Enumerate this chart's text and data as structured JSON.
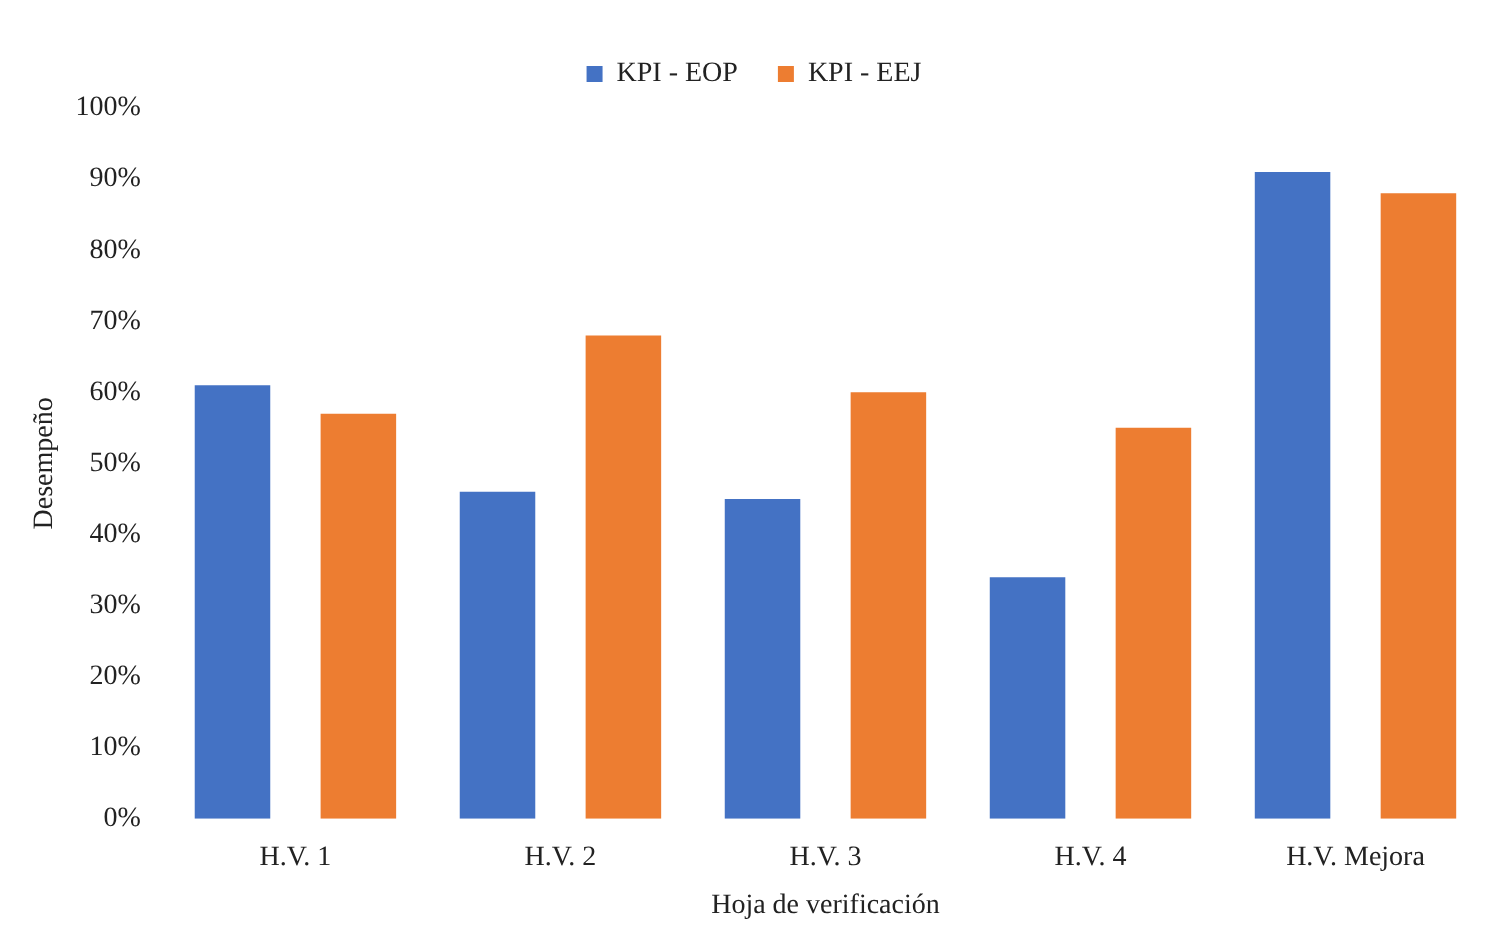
{
  "chart_data": {
    "type": "bar",
    "xlabel": "Hoja de verificación",
    "ylabel": "Desempeño",
    "categories": [
      "H.V. 1",
      "H.V. 2",
      "H.V. 3",
      "H.V. 4",
      "H.V. Mejora"
    ],
    "series": [
      {
        "name": "KPI - EOP",
        "color": "#4472c4",
        "values": [
          61,
          46,
          45,
          34,
          91
        ]
      },
      {
        "name": "KPI - EEJ",
        "color": "#ed7d31",
        "values": [
          57,
          68,
          60,
          55,
          88
        ]
      }
    ],
    "ylim": [
      0,
      100
    ],
    "yticks": [
      {
        "value": 0,
        "label": "0%"
      },
      {
        "value": 10,
        "label": "10%"
      },
      {
        "value": 20,
        "label": "20%"
      },
      {
        "value": 30,
        "label": "30%"
      },
      {
        "value": 40,
        "label": "40%"
      },
      {
        "value": 50,
        "label": "50%"
      },
      {
        "value": 60,
        "label": "60%"
      },
      {
        "value": 70,
        "label": "70%"
      },
      {
        "value": 80,
        "label": "80%"
      },
      {
        "value": 90,
        "label": "90%"
      },
      {
        "value": 100,
        "label": "100%"
      }
    ],
    "grid": false,
    "legend": "top"
  }
}
